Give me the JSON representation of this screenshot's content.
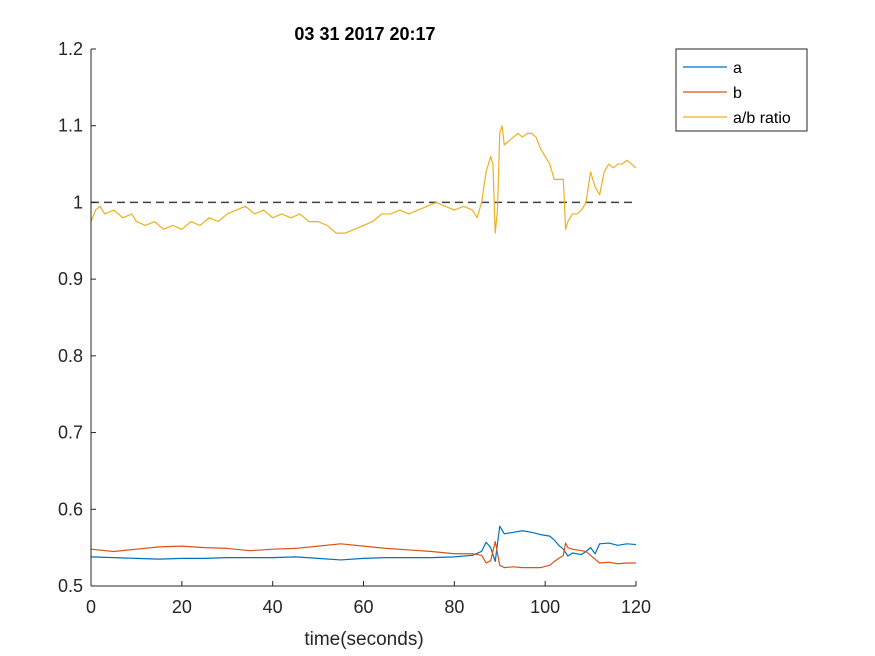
{
  "chart_data": {
    "type": "line",
    "title": "03 31 2017 20:17",
    "xlabel": "time(seconds)",
    "ylabel": "",
    "xlim": [
      0,
      120
    ],
    "ylim": [
      0.5,
      1.2
    ],
    "x_ticks": [
      0,
      20,
      40,
      60,
      80,
      100,
      120
    ],
    "x_tick_labels": [
      "0",
      "20",
      "40",
      "60",
      "80",
      "100",
      "120"
    ],
    "y_ticks": [
      0.5,
      0.6,
      0.7,
      0.8,
      0.9,
      1.0,
      1.1,
      1.2
    ],
    "y_tick_labels": [
      "0.5",
      "0.6",
      "0.7",
      "0.8",
      "0.9",
      "1",
      "1.1",
      "1.2"
    ],
    "grid": false,
    "legend_position": "outside-top-right",
    "reference_line": {
      "y": 1.0,
      "style": "dashed",
      "color": "#404040"
    },
    "series": [
      {
        "name": "a",
        "color": "#0072BD",
        "points": [
          [
            0,
            0.538
          ],
          [
            5,
            0.537
          ],
          [
            10,
            0.536
          ],
          [
            15,
            0.535
          ],
          [
            20,
            0.536
          ],
          [
            25,
            0.536
          ],
          [
            30,
            0.537
          ],
          [
            35,
            0.537
          ],
          [
            40,
            0.537
          ],
          [
            45,
            0.538
          ],
          [
            50,
            0.536
          ],
          [
            55,
            0.534
          ],
          [
            60,
            0.536
          ],
          [
            65,
            0.537
          ],
          [
            70,
            0.537
          ],
          [
            75,
            0.537
          ],
          [
            80,
            0.538
          ],
          [
            84,
            0.54
          ],
          [
            86,
            0.545
          ],
          [
            87,
            0.557
          ],
          [
            88,
            0.55
          ],
          [
            89,
            0.532
          ],
          [
            90,
            0.578
          ],
          [
            91,
            0.568
          ],
          [
            93,
            0.57
          ],
          [
            95,
            0.572
          ],
          [
            97,
            0.57
          ],
          [
            99,
            0.567
          ],
          [
            101,
            0.565
          ],
          [
            102,
            0.56
          ],
          [
            103,
            0.553
          ],
          [
            104,
            0.548
          ],
          [
            105,
            0.539
          ],
          [
            106,
            0.543
          ],
          [
            108,
            0.541
          ],
          [
            109,
            0.545
          ],
          [
            110,
            0.55
          ],
          [
            111,
            0.542
          ],
          [
            112,
            0.555
          ],
          [
            114,
            0.556
          ],
          [
            116,
            0.553
          ],
          [
            118,
            0.555
          ],
          [
            120,
            0.554
          ]
        ]
      },
      {
        "name": "b",
        "color": "#D95319",
        "points": [
          [
            0,
            0.548
          ],
          [
            5,
            0.545
          ],
          [
            10,
            0.548
          ],
          [
            15,
            0.551
          ],
          [
            20,
            0.552
          ],
          [
            25,
            0.55
          ],
          [
            30,
            0.549
          ],
          [
            35,
            0.546
          ],
          [
            40,
            0.548
          ],
          [
            45,
            0.549
          ],
          [
            50,
            0.552
          ],
          [
            55,
            0.555
          ],
          [
            60,
            0.552
          ],
          [
            65,
            0.549
          ],
          [
            70,
            0.547
          ],
          [
            75,
            0.545
          ],
          [
            80,
            0.542
          ],
          [
            84,
            0.542
          ],
          [
            86,
            0.54
          ],
          [
            87,
            0.53
          ],
          [
            88,
            0.533
          ],
          [
            89,
            0.558
          ],
          [
            90,
            0.527
          ],
          [
            91,
            0.524
          ],
          [
            93,
            0.525
          ],
          [
            95,
            0.524
          ],
          [
            97,
            0.524
          ],
          [
            99,
            0.524
          ],
          [
            101,
            0.527
          ],
          [
            102,
            0.532
          ],
          [
            103,
            0.536
          ],
          [
            104,
            0.54
          ],
          [
            104.5,
            0.556
          ],
          [
            105,
            0.55
          ],
          [
            106,
            0.548
          ],
          [
            108,
            0.546
          ],
          [
            109,
            0.545
          ],
          [
            110,
            0.54
          ],
          [
            111,
            0.535
          ],
          [
            112,
            0.53
          ],
          [
            114,
            0.531
          ],
          [
            116,
            0.529
          ],
          [
            118,
            0.53
          ],
          [
            120,
            0.53
          ]
        ]
      },
      {
        "name": "a/b ratio",
        "color": "#EDB120",
        "points": [
          [
            0,
            0.975
          ],
          [
            1,
            0.99
          ],
          [
            2,
            0.995
          ],
          [
            3,
            0.985
          ],
          [
            5,
            0.99
          ],
          [
            7,
            0.98
          ],
          [
            9,
            0.985
          ],
          [
            10,
            0.975
          ],
          [
            12,
            0.97
          ],
          [
            14,
            0.975
          ],
          [
            16,
            0.965
          ],
          [
            18,
            0.97
          ],
          [
            20,
            0.965
          ],
          [
            22,
            0.975
          ],
          [
            24,
            0.97
          ],
          [
            26,
            0.98
          ],
          [
            28,
            0.975
          ],
          [
            30,
            0.985
          ],
          [
            32,
            0.99
          ],
          [
            34,
            0.995
          ],
          [
            36,
            0.985
          ],
          [
            38,
            0.99
          ],
          [
            40,
            0.98
          ],
          [
            42,
            0.985
          ],
          [
            44,
            0.98
          ],
          [
            46,
            0.985
          ],
          [
            48,
            0.975
          ],
          [
            50,
            0.975
          ],
          [
            52,
            0.97
          ],
          [
            54,
            0.96
          ],
          [
            56,
            0.96
          ],
          [
            58,
            0.965
          ],
          [
            60,
            0.97
          ],
          [
            62,
            0.975
          ],
          [
            64,
            0.985
          ],
          [
            66,
            0.985
          ],
          [
            68,
            0.99
          ],
          [
            70,
            0.985
          ],
          [
            72,
            0.99
          ],
          [
            74,
            0.995
          ],
          [
            76,
            1.0
          ],
          [
            78,
            0.995
          ],
          [
            80,
            0.99
          ],
          [
            82,
            0.995
          ],
          [
            84,
            0.99
          ],
          [
            85,
            0.98
          ],
          [
            86,
            1.0
          ],
          [
            87,
            1.04
          ],
          [
            88,
            1.06
          ],
          [
            88.5,
            1.05
          ],
          [
            89,
            0.96
          ],
          [
            89.5,
            0.99
          ],
          [
            90,
            1.09
          ],
          [
            90.5,
            1.1
          ],
          [
            91,
            1.075
          ],
          [
            92,
            1.08
          ],
          [
            93,
            1.085
          ],
          [
            94,
            1.09
          ],
          [
            95,
            1.085
          ],
          [
            96,
            1.09
          ],
          [
            97,
            1.09
          ],
          [
            98,
            1.085
          ],
          [
            99,
            1.07
          ],
          [
            100,
            1.06
          ],
          [
            101,
            1.05
          ],
          [
            102,
            1.03
          ],
          [
            103,
            1.03
          ],
          [
            104,
            1.03
          ],
          [
            104.5,
            0.965
          ],
          [
            105,
            0.975
          ],
          [
            106,
            0.985
          ],
          [
            107,
            0.985
          ],
          [
            108,
            0.99
          ],
          [
            109,
            1.0
          ],
          [
            110,
            1.04
          ],
          [
            111,
            1.02
          ],
          [
            112,
            1.01
          ],
          [
            113,
            1.04
          ],
          [
            114,
            1.05
          ],
          [
            115,
            1.045
          ],
          [
            116,
            1.05
          ],
          [
            117,
            1.05
          ],
          [
            118,
            1.055
          ],
          [
            119,
            1.05
          ],
          [
            120,
            1.045
          ]
        ]
      }
    ]
  }
}
